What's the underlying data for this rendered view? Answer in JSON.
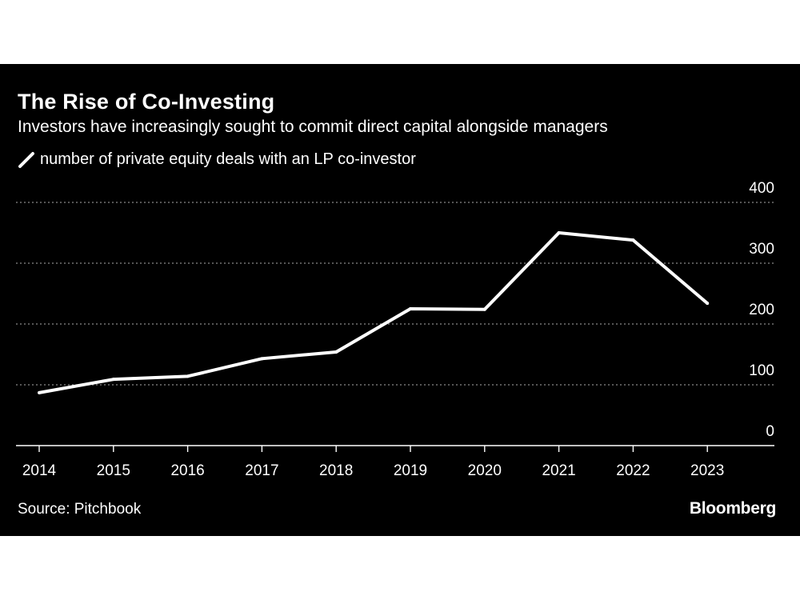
{
  "header": {
    "title": "The Rise of Co-Investing",
    "subtitle": "Investors have increasingly sought to commit direct capital alongside managers"
  },
  "footer": {
    "source": "Source: Pitchbook",
    "brand": "Bloomberg"
  },
  "colors": {
    "background": "#000000",
    "line": "#ffffff",
    "grid": "#8a8a8a"
  },
  "chart_data": {
    "type": "line",
    "title": "The Rise of Co-Investing",
    "subtitle": "Investors have increasingly sought to commit direct capital alongside managers",
    "xlabel": "",
    "ylabel": "",
    "categories": [
      "2014",
      "2015",
      "2016",
      "2017",
      "2018",
      "2019",
      "2020",
      "2021",
      "2022",
      "2023"
    ],
    "series": [
      {
        "name": "number of private equity deals with an LP co-investor",
        "values": [
          87,
          109,
          114,
          143,
          154,
          225,
          224,
          350,
          338,
          234
        ]
      }
    ],
    "ylim": [
      0,
      400
    ],
    "yticks": [
      "0",
      "100",
      "200",
      "300",
      "400"
    ],
    "grid": true,
    "legend_position": "top-left",
    "y_axis_side": "right"
  }
}
